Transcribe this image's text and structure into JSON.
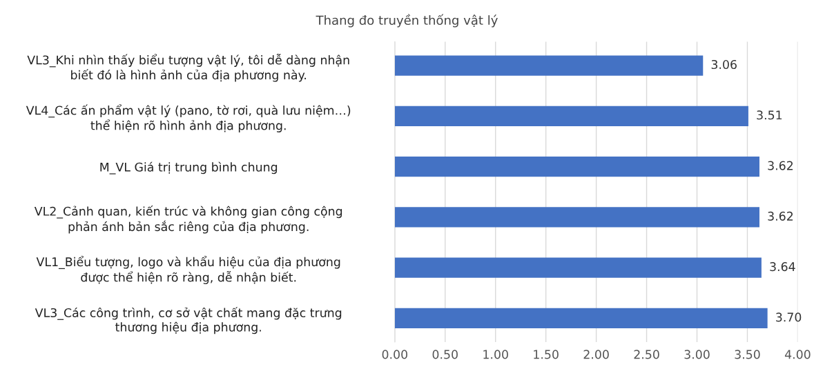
{
  "chart_data": {
    "type": "bar",
    "orientation": "horizontal",
    "title": "Thang đo truyền thống vật lý",
    "categories": [
      "VL3_Khi nhìn thấy biểu tượng vật lý, tôi dễ dàng nhận\nbiết đó là hình ảnh của địa phương này.",
      "VL4_Các ấn phẩm vật lý (pano, tờ rơi, quà lưu niệm…)\nthể hiện rõ hình ảnh địa phương.",
      "M_VL Giá trị trung bình chung",
      "VL2_Cảnh quan, kiến trúc và không gian công cộng\nphản ánh bản sắc riêng của địa phương.",
      "VL1_Biểu tượng, logo và khẩu hiệu của địa phương\nđược thể hiện rõ ràng, dễ nhận biết.",
      "VL3_Các công trình, cơ sở vật chất mang đặc trưng\nthương hiệu địa phương."
    ],
    "values": [
      3.06,
      3.51,
      3.62,
      3.62,
      3.64,
      3.7
    ],
    "value_labels": [
      "3.06",
      "3.51",
      "3.62",
      "3.62",
      "3.64",
      "3.70"
    ],
    "color": "#4472c4",
    "xlim": [
      0,
      4
    ],
    "xticks": [
      {
        "value": 0,
        "label": "0.00"
      },
      {
        "value": 0.5,
        "label": "0.50"
      },
      {
        "value": 1,
        "label": "1.00"
      },
      {
        "value": 1.5,
        "label": "1.50"
      },
      {
        "value": 2,
        "label": "2.00"
      },
      {
        "value": 2.5,
        "label": "2.50"
      },
      {
        "value": 3,
        "label": "3.00"
      },
      {
        "value": 3.5,
        "label": "3.50"
      },
      {
        "value": 4,
        "label": "4.00"
      }
    ],
    "grid": "x"
  }
}
